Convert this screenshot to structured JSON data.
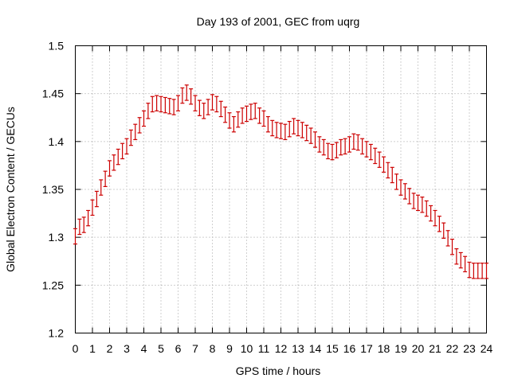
{
  "chart_data": {
    "type": "line",
    "title": "Day 193 of 2001, GEC from uqrg",
    "xlabel": "GPS time / hours",
    "ylabel": "Global Electron Content / GECUs",
    "xlim": [
      0,
      24
    ],
    "ylim": [
      1.2,
      1.5
    ],
    "grid": true,
    "x_ticks": [
      "0",
      "1",
      "2",
      "3",
      "4",
      "5",
      "6",
      "7",
      "8",
      "9",
      "10",
      "11",
      "12",
      "13",
      "14",
      "15",
      "16",
      "17",
      "18",
      "19",
      "20",
      "21",
      "22",
      "23",
      "24"
    ],
    "y_ticks": [
      "1.2",
      "1.25",
      "1.3",
      "1.35",
      "1.4",
      "1.45",
      "1.5"
    ],
    "series": [
      {
        "color": "#cc0000",
        "error": 0.008,
        "x": [
          0.0,
          0.25,
          0.5,
          0.75,
          1.0,
          1.25,
          1.5,
          1.75,
          2.0,
          2.25,
          2.5,
          2.75,
          3.0,
          3.25,
          3.5,
          3.75,
          4.0,
          4.25,
          4.5,
          4.75,
          5.0,
          5.25,
          5.5,
          5.75,
          6.0,
          6.25,
          6.5,
          6.75,
          7.0,
          7.25,
          7.5,
          7.75,
          8.0,
          8.25,
          8.5,
          8.75,
          9.0,
          9.25,
          9.5,
          9.75,
          10.0,
          10.25,
          10.5,
          10.75,
          11.0,
          11.25,
          11.5,
          11.75,
          12.0,
          12.25,
          12.5,
          12.75,
          13.0,
          13.25,
          13.5,
          13.75,
          14.0,
          14.25,
          14.5,
          14.75,
          15.0,
          15.25,
          15.5,
          15.75,
          16.0,
          16.25,
          16.5,
          16.75,
          17.0,
          17.25,
          17.5,
          17.75,
          18.0,
          18.25,
          18.5,
          18.75,
          19.0,
          19.25,
          19.5,
          19.75,
          20.0,
          20.25,
          20.5,
          20.75,
          21.0,
          21.25,
          21.5,
          21.75,
          22.0,
          22.25,
          22.5,
          22.75,
          23.0,
          23.25,
          23.5,
          23.75,
          24.0
        ],
        "y": [
          1.301,
          1.311,
          1.313,
          1.32,
          1.331,
          1.34,
          1.352,
          1.361,
          1.372,
          1.378,
          1.384,
          1.39,
          1.395,
          1.404,
          1.41,
          1.417,
          1.424,
          1.432,
          1.439,
          1.44,
          1.439,
          1.438,
          1.437,
          1.436,
          1.44,
          1.448,
          1.451,
          1.447,
          1.44,
          1.435,
          1.432,
          1.436,
          1.441,
          1.439,
          1.434,
          1.428,
          1.422,
          1.418,
          1.423,
          1.427,
          1.429,
          1.431,
          1.432,
          1.427,
          1.424,
          1.418,
          1.414,
          1.412,
          1.411,
          1.41,
          1.413,
          1.416,
          1.414,
          1.412,
          1.409,
          1.406,
          1.402,
          1.397,
          1.394,
          1.39,
          1.389,
          1.391,
          1.394,
          1.395,
          1.397,
          1.4,
          1.399,
          1.395,
          1.392,
          1.389,
          1.385,
          1.381,
          1.376,
          1.37,
          1.365,
          1.358,
          1.352,
          1.348,
          1.343,
          1.338,
          1.336,
          1.334,
          1.33,
          1.325,
          1.32,
          1.314,
          1.307,
          1.299,
          1.29,
          1.28,
          1.276,
          1.272,
          1.266,
          1.265,
          1.265,
          1.265,
          1.265
        ]
      }
    ]
  }
}
